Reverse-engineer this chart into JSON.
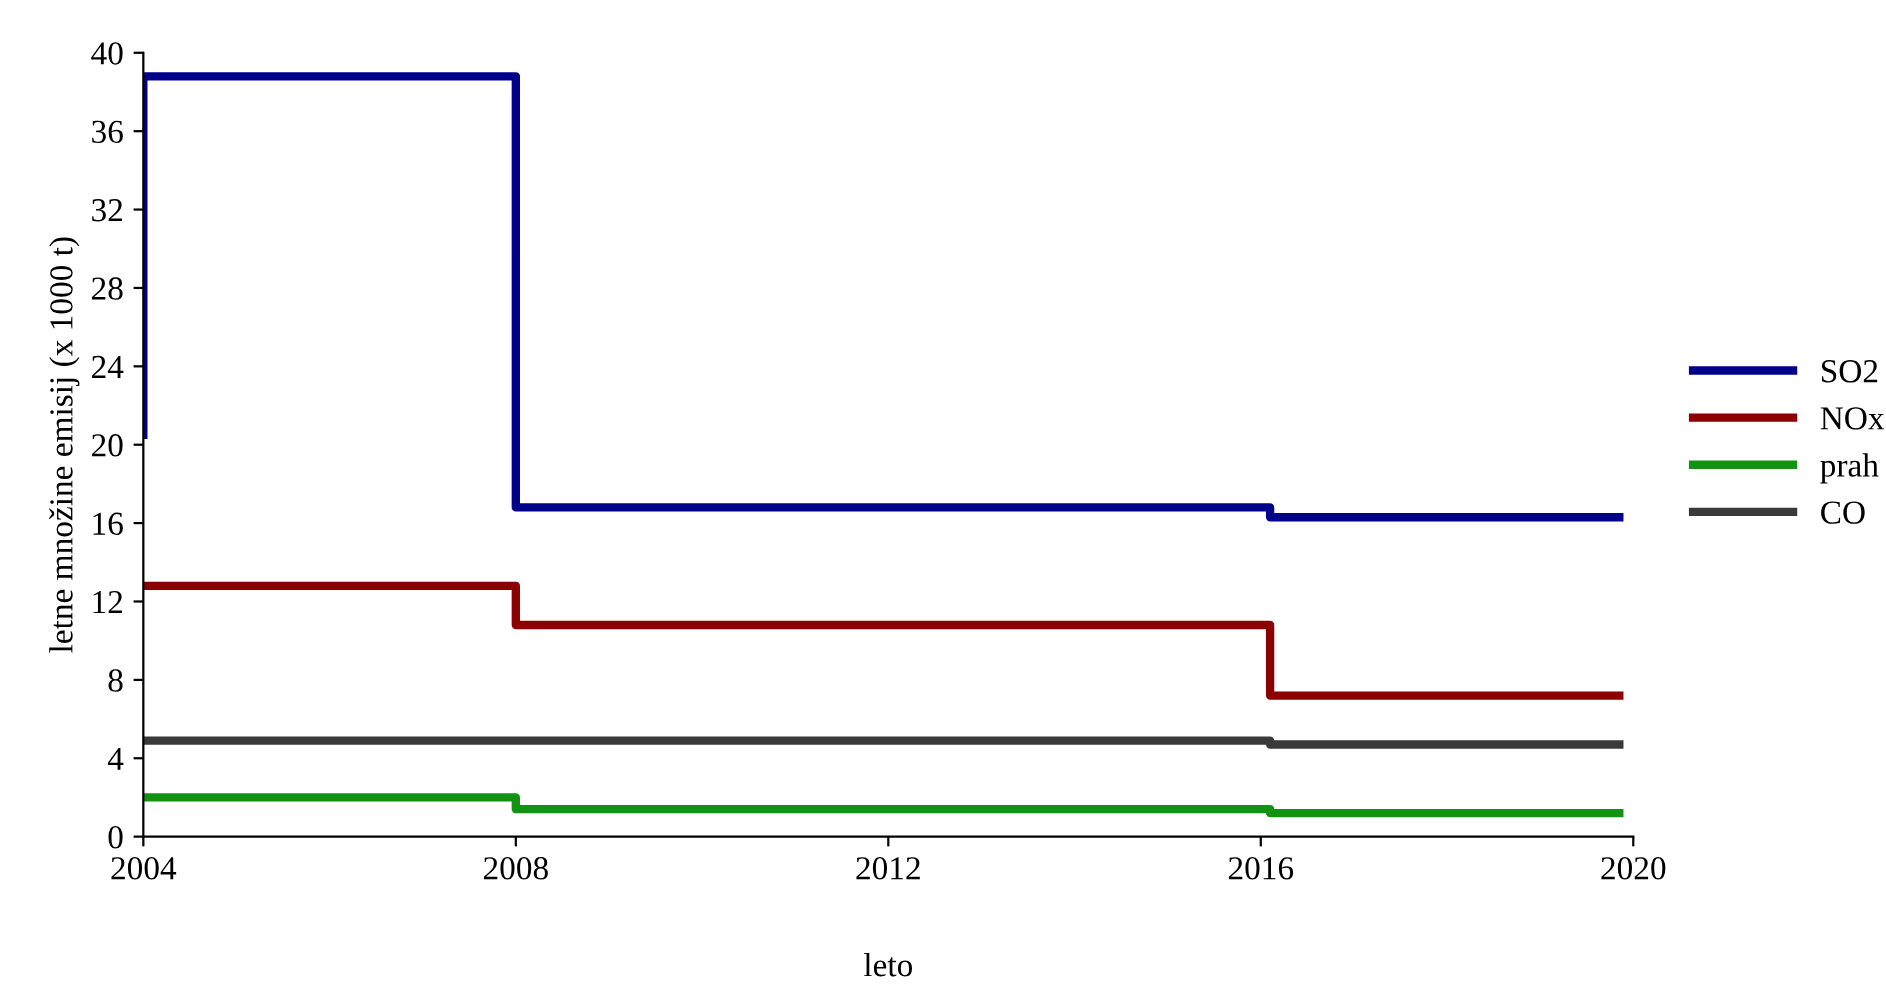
{
  "chart_data": {
    "type": "step",
    "xlabel": "leto",
    "ylabel": "letne množine emisij (x 1000 t)",
    "xlim": [
      2004,
      2020
    ],
    "xticks": [
      2004,
      2008,
      2012,
      2016,
      2020
    ],
    "ylim": [
      0,
      40
    ],
    "yticks": [
      0,
      4,
      8,
      12,
      16,
      20,
      24,
      28,
      32,
      36,
      40
    ],
    "grid": false,
    "legend": "right",
    "line_style": "solid",
    "marker": "none",
    "series": [
      {
        "name": "SO2",
        "color": "#00008b",
        "x": [
          2004,
          2004,
          2008,
          2016.1,
          2019.85
        ],
        "values": [
          20.5,
          38.8,
          16.8,
          16.3,
          16.3
        ]
      },
      {
        "name": "NOx",
        "color": "#8b0000",
        "x": [
          2004,
          2008,
          2016.1,
          2019.85
        ],
        "values": [
          12.8,
          10.8,
          7.2,
          7.2
        ]
      },
      {
        "name": "prah",
        "color": "#139113",
        "x": [
          2004,
          2008,
          2016.1,
          2019.85
        ],
        "values": [
          2.0,
          1.4,
          1.2,
          1.2
        ]
      },
      {
        "name": "CO",
        "color": "#3a3a3a",
        "x": [
          2004,
          2008,
          2016.1,
          2019.85
        ],
        "values": [
          4.9,
          4.9,
          4.7,
          4.7
        ]
      }
    ]
  }
}
